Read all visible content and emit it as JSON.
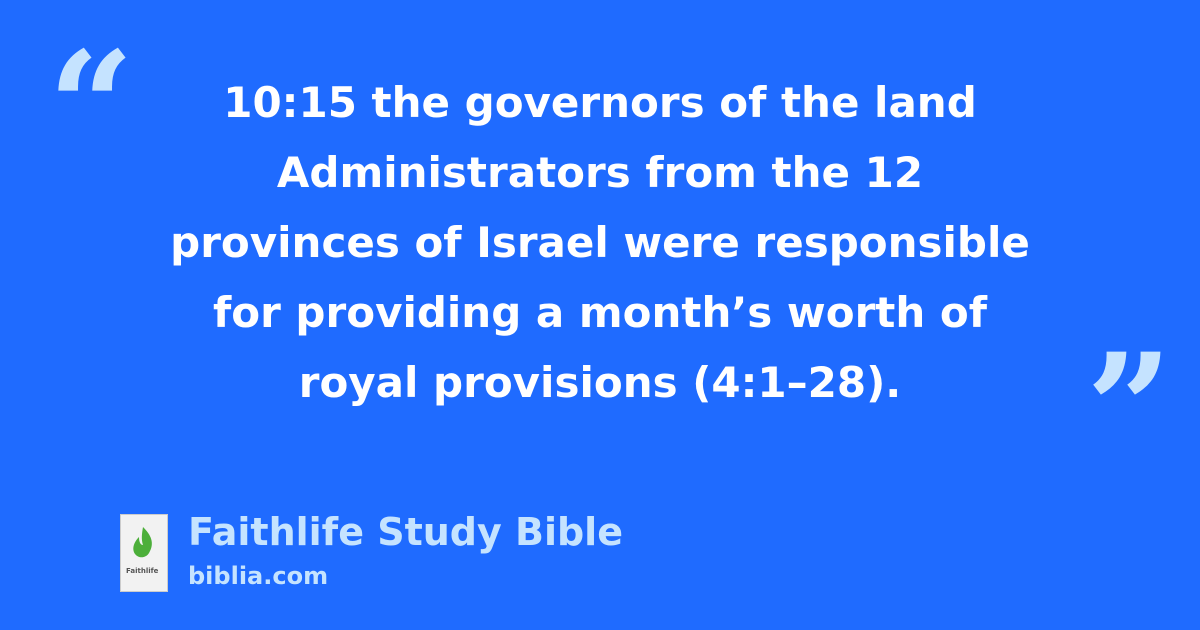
{
  "quote": {
    "lines": [
      "10:15 the governors of the land",
      "Administrators from the 12",
      "provinces of Israel were responsible",
      "for providing a month’s worth of",
      "royal provisions (4:1–28)."
    ],
    "open_mark": "“",
    "close_mark": "”"
  },
  "source": {
    "title": "Faithlife Study Bible",
    "site": "biblia.com",
    "cover_text": "Faithlife"
  },
  "colors": {
    "background": "#1f6bff",
    "accent": "#c5e3ff",
    "text": "#ffffff"
  }
}
